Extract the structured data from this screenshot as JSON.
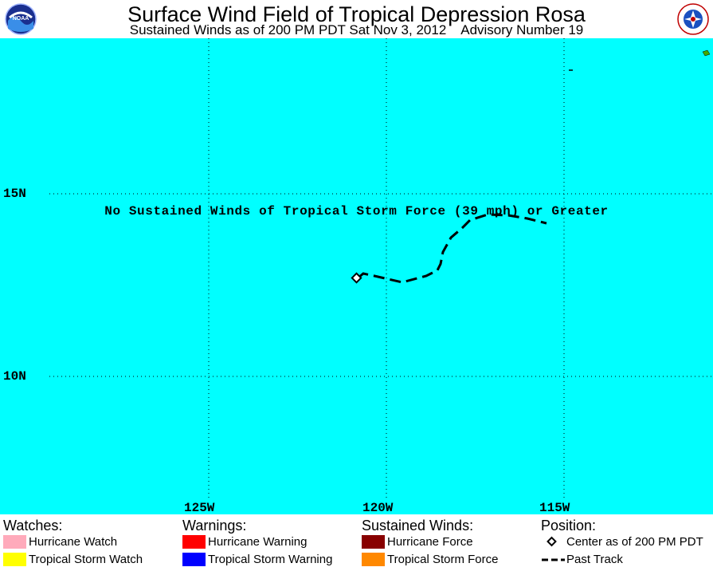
{
  "header": {
    "title": "Surface Wind Field of Tropical Depression Rosa",
    "subtitle": "Sustained Winds as of 200 PM PDT Sat Nov 3, 2012    Advisory Number 19",
    "left_logo": "noaa-logo",
    "left_logo_text": "NOAA",
    "right_logo": "national-weather-service-logo",
    "right_logo_text": "NATIONAL WEATHER SERVICE"
  },
  "map": {
    "background_color": "#00ffff",
    "lat_labels": [
      "15N",
      "10N"
    ],
    "lon_labels": [
      "125W",
      "120W",
      "115W"
    ],
    "banner": "No Sustained Winds of Tropical Storm Force (39 mph) or Greater"
  },
  "legend": {
    "watches": {
      "heading": "Watches:",
      "items": [
        {
          "label": "Hurricane Watch",
          "color": "#ffaabb"
        },
        {
          "label": "Tropical Storm Watch",
          "color": "#ffff00"
        }
      ]
    },
    "warnings": {
      "heading": "Warnings:",
      "items": [
        {
          "label": "Hurricane Warning",
          "color": "#ff0000"
        },
        {
          "label": "Tropical Storm Warning",
          "color": "#0000ff"
        }
      ]
    },
    "winds": {
      "heading": "Sustained Winds:",
      "items": [
        {
          "label": "Hurricane Force",
          "color": "#880000"
        },
        {
          "label": "Tropical Storm Force",
          "color": "#ff8800"
        }
      ]
    },
    "position": {
      "heading": "Position:",
      "items": [
        {
          "label": "Center as of 200 PM PDT",
          "icon": "diamond-icon"
        },
        {
          "label": "Past Track",
          "icon": "dashed-line-icon"
        }
      ]
    }
  }
}
